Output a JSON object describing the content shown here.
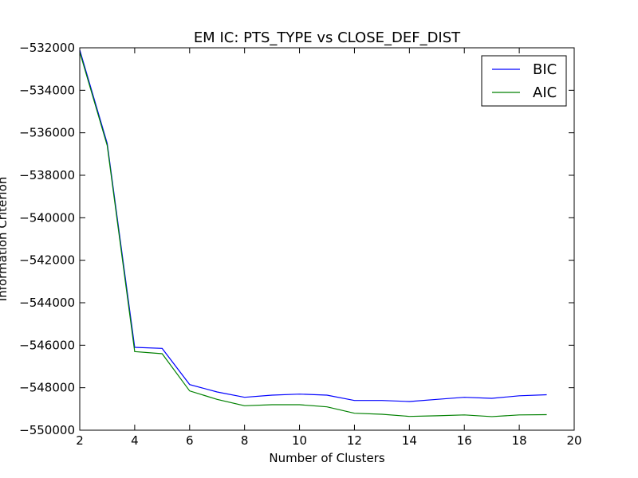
{
  "chart_data": {
    "type": "line",
    "title": "EM IC: PTS_TYPE vs CLOSE_DEF_DIST",
    "xlabel": "Number of Clusters",
    "ylabel": "Information Criterion",
    "xlim": [
      2,
      20
    ],
    "ylim": [
      -550000,
      -532000
    ],
    "xticks": [
      2,
      4,
      6,
      8,
      10,
      12,
      14,
      16,
      18,
      20
    ],
    "xtick_labels": [
      "2",
      "4",
      "6",
      "8",
      "10",
      "12",
      "14",
      "16",
      "18",
      "20"
    ],
    "yticks": [
      -550000,
      -548000,
      -546000,
      -544000,
      -542000,
      -540000,
      -538000,
      -536000,
      -534000,
      -532000
    ],
    "ytick_labels": [
      "−550000",
      "−548000",
      "−546000",
      "−544000",
      "−542000",
      "−540000",
      "−538000",
      "−536000",
      "−534000",
      "−532000"
    ],
    "grid": false,
    "legend_position": "top-right",
    "x": [
      2,
      3,
      4,
      5,
      6,
      7,
      8,
      9,
      10,
      11,
      12,
      13,
      14,
      15,
      16,
      17,
      18,
      19
    ],
    "series": [
      {
        "name": "BIC",
        "color": "#0000ff",
        "values": [
          -532100,
          -536500,
          -546100,
          -546150,
          -547850,
          -548200,
          -548450,
          -548350,
          -548300,
          -548350,
          -548600,
          -548600,
          -548650,
          -548550,
          -548450,
          -548500,
          -548380,
          -548330
        ]
      },
      {
        "name": "AIC",
        "color": "#008000",
        "values": [
          -532200,
          -536600,
          -546300,
          -546400,
          -548150,
          -548550,
          -548850,
          -548800,
          -548800,
          -548900,
          -549200,
          -549250,
          -549350,
          -549320,
          -549280,
          -549360,
          -549280,
          -549270
        ]
      }
    ]
  }
}
